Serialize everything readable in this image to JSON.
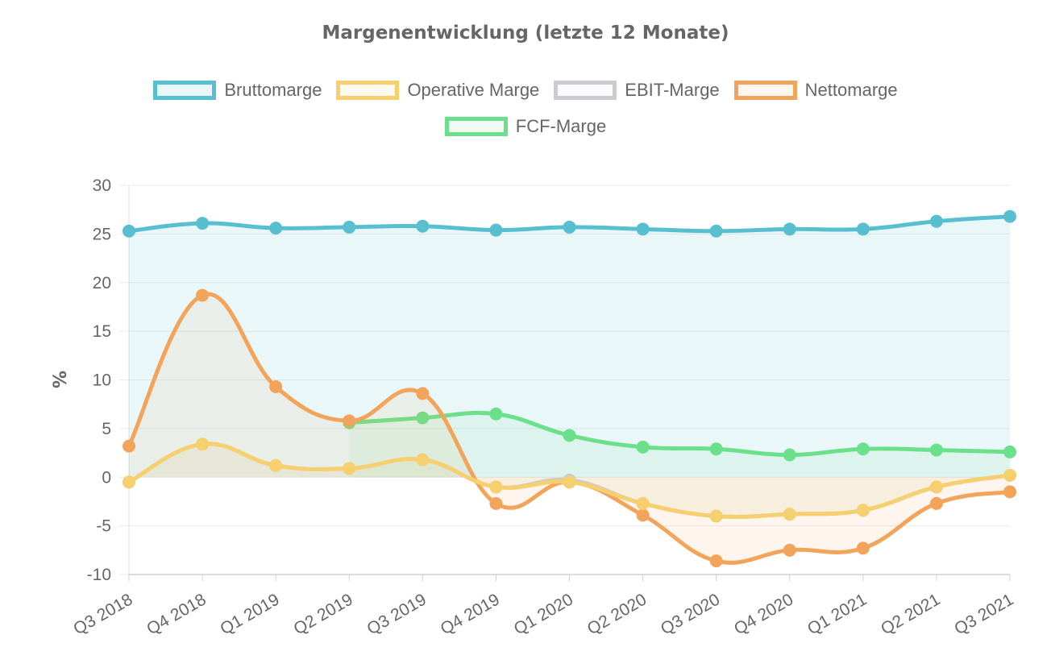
{
  "chart_data": {
    "type": "line",
    "title": "Margenentwicklung (letzte 12 Monate)",
    "xlabel": "",
    "ylabel": "%",
    "ylim": [
      -10,
      30
    ],
    "yticks": [
      30,
      25,
      20,
      15,
      10,
      5,
      0,
      -5,
      -10
    ],
    "categories": [
      "Q3 2018",
      "Q4 2018",
      "Q1 2019",
      "Q2 2019",
      "Q3 2019",
      "Q4 2019",
      "Q1 2020",
      "Q2 2020",
      "Q3 2020",
      "Q4 2020",
      "Q1 2021",
      "Q2 2021",
      "Q3 2021"
    ],
    "grid": true,
    "legend_position": "top",
    "series": [
      {
        "name": "Bruttomarge",
        "color": "#58BFD0",
        "fill": "rgba(88,191,208,0.13)",
        "values": [
          25.3,
          26.1,
          25.6,
          25.7,
          25.8,
          25.4,
          25.7,
          25.5,
          25.3,
          25.5,
          25.5,
          26.3,
          26.8
        ]
      },
      {
        "name": "Operative Marge",
        "color": "#F6D06E",
        "fill": "rgba(246,208,110,0.10)",
        "values": [
          -0.5,
          3.4,
          1.2,
          0.9,
          1.8,
          -1.0,
          -0.5,
          -2.7,
          -4.0,
          -3.8,
          -3.4,
          -1.0,
          0.2
        ]
      },
      {
        "name": "EBIT-Marge",
        "color": "#C9CBCF",
        "fill": "rgba(201,203,207,0.10)",
        "values": [
          -0.5,
          3.4,
          1.2,
          0.9,
          1.8,
          -1.0,
          -0.3,
          -2.7,
          -4.0,
          -3.8,
          -3.4,
          -1.0,
          0.2
        ]
      },
      {
        "name": "Nettomarge",
        "color": "#F2A55A",
        "fill": "rgba(242,165,90,0.10)",
        "values": [
          3.2,
          18.7,
          9.3,
          5.8,
          8.6,
          -2.7,
          -0.5,
          -3.9,
          -8.6,
          -7.5,
          -7.3,
          -2.7,
          -1.5
        ]
      },
      {
        "name": "FCF-Marge",
        "color": "#6BE08A",
        "fill": "rgba(107,224,138,0.10)",
        "values": [
          null,
          null,
          null,
          5.6,
          6.1,
          6.5,
          4.3,
          3.1,
          2.9,
          2.3,
          2.9,
          2.8,
          2.6
        ]
      }
    ]
  }
}
